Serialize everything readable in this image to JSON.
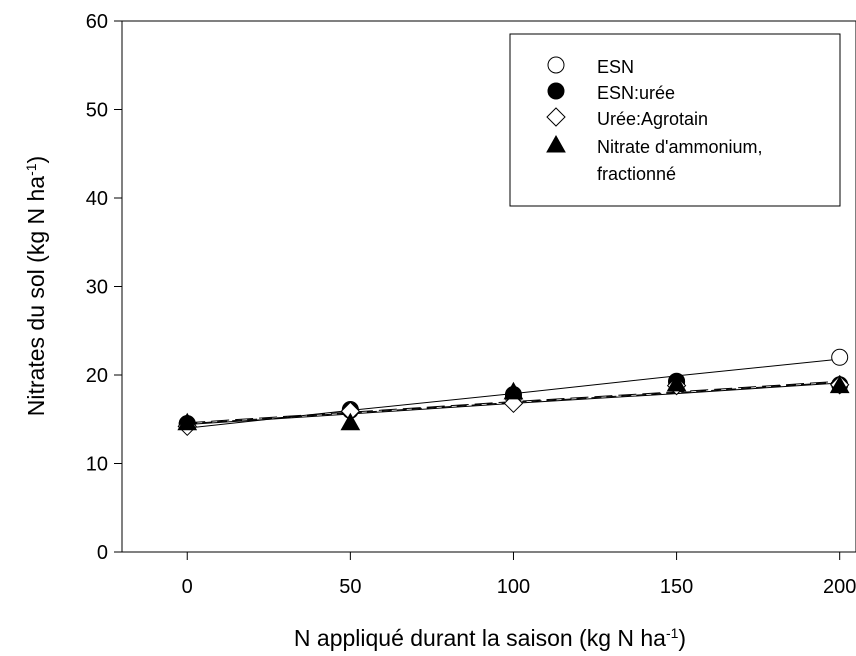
{
  "chart_data": {
    "type": "line",
    "xlabel": "N appliqué durant la saison (kg N ha",
    "xlabel_sup": "-1",
    "xlabel_end": ")",
    "ylabel": "Nitrates du sol (kg N ha",
    "ylabel_sup": "-1",
    "ylabel_end": ")",
    "xlim": [
      -20,
      205
    ],
    "ylim": [
      0,
      60
    ],
    "xticks": [
      0,
      50,
      100,
      150,
      200
    ],
    "yticks": [
      0,
      10,
      20,
      30,
      40,
      50,
      60
    ],
    "x": [
      0,
      50,
      100,
      150,
      200
    ],
    "legend_position": "top-right",
    "series": [
      {
        "name": "ESN",
        "marker": "circle-open",
        "line": "solid",
        "values": [
          14.5,
          16.1,
          17.5,
          19.2,
          22.0
        ],
        "fit": [
          14.0,
          16.0,
          17.9,
          19.9,
          21.8
        ]
      },
      {
        "name": "ESN:urée",
        "marker": "circle-filled",
        "line": "long-dash",
        "values": [
          14.5,
          16.0,
          17.8,
          19.3,
          18.9
        ],
        "fit": [
          14.6,
          15.8,
          17.0,
          18.1,
          19.3
        ]
      },
      {
        "name": "Urée:Agrotain",
        "marker": "diamond-open",
        "line": "solid",
        "values": [
          14.2,
          15.9,
          16.8,
          18.8,
          18.9
        ],
        "fit": [
          14.4,
          15.6,
          16.8,
          17.9,
          19.1
        ]
      },
      {
        "name": "Nitrate d'ammonium,",
        "name_line2": "fractionné",
        "marker": "triangle-filled",
        "line": "dash",
        "values": [
          14.6,
          14.6,
          18.1,
          19.0,
          18.8
        ],
        "fit": [
          14.5,
          15.7,
          16.9,
          18.0,
          19.2
        ]
      }
    ]
  }
}
